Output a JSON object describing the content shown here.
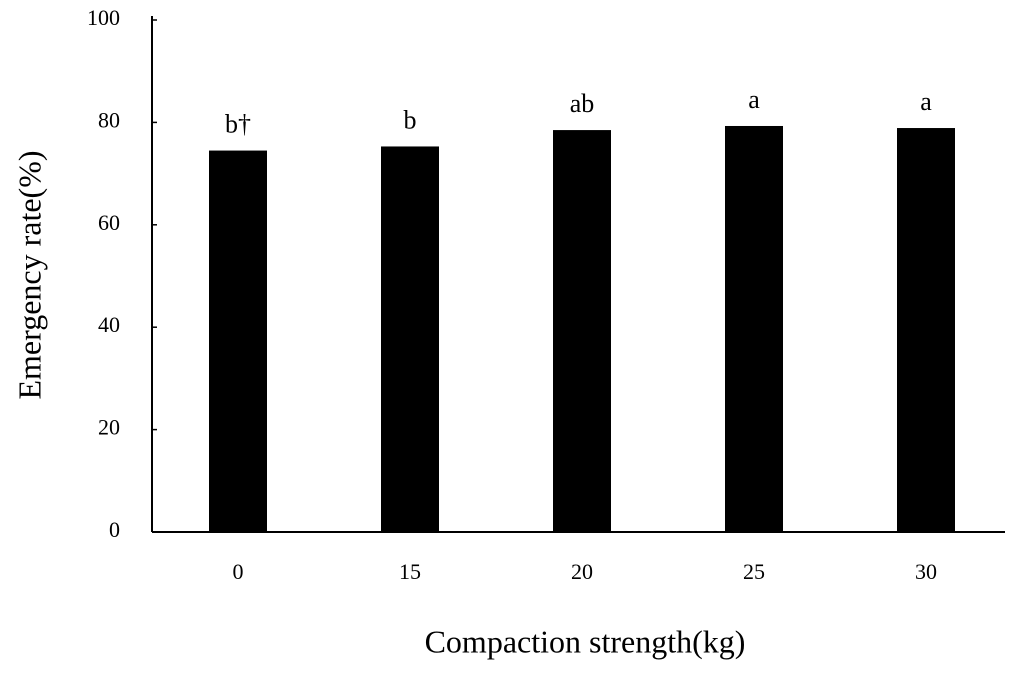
{
  "chart_data": {
    "type": "bar",
    "categories": [
      "0",
      "15",
      "20",
      "25",
      "30"
    ],
    "values": [
      74.5,
      75.3,
      78.5,
      79.3,
      78.9
    ],
    "annotations": [
      "b†",
      "b",
      "ab",
      "a",
      "a"
    ],
    "color": "#000000",
    "xlabel": "Compaction strength(kg)",
    "ylabel": "Emergency rate(%)",
    "ylim": [
      0,
      100
    ],
    "yticks": [
      0,
      20,
      40,
      60,
      80,
      100
    ],
    "grid": false
  }
}
